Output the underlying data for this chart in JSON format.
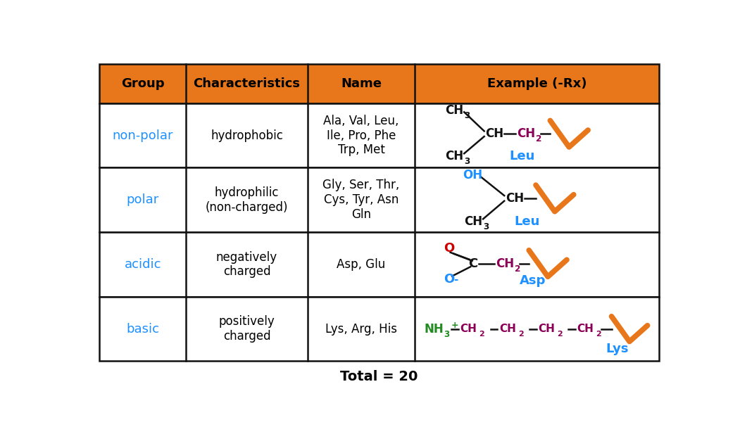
{
  "header_bg": "#E8761A",
  "header_labels": [
    "Group",
    "Characteristics",
    "Name",
    "Example (-Rx)"
  ],
  "rows": [
    {
      "group": "non-polar",
      "characteristics": "hydrophobic",
      "name": "Ala, Val, Leu,\nIle, Pro, Phe\nTrp, Met"
    },
    {
      "group": "polar",
      "characteristics": "hydrophilic\n(non-charged)",
      "name": "Gly, Ser, Thr,\nCys, Tyr, Asn\nGln"
    },
    {
      "group": "acidic",
      "characteristics": "negatively\ncharged",
      "name": "Asp, Glu"
    },
    {
      "group": "basic",
      "characteristics": "positively\ncharged",
      "name": "Lys, Arg, His"
    }
  ],
  "group_color": "#1E90FF",
  "chem_dark": "#111111",
  "chem_purple": "#8B0057",
  "chem_blue": "#1E90FF",
  "chem_green": "#228B22",
  "chem_orange": "#E8761A",
  "chem_red": "#CC0000",
  "total_text": "Total = 20",
  "border_color": "#111111",
  "white": "#FFFFFF"
}
